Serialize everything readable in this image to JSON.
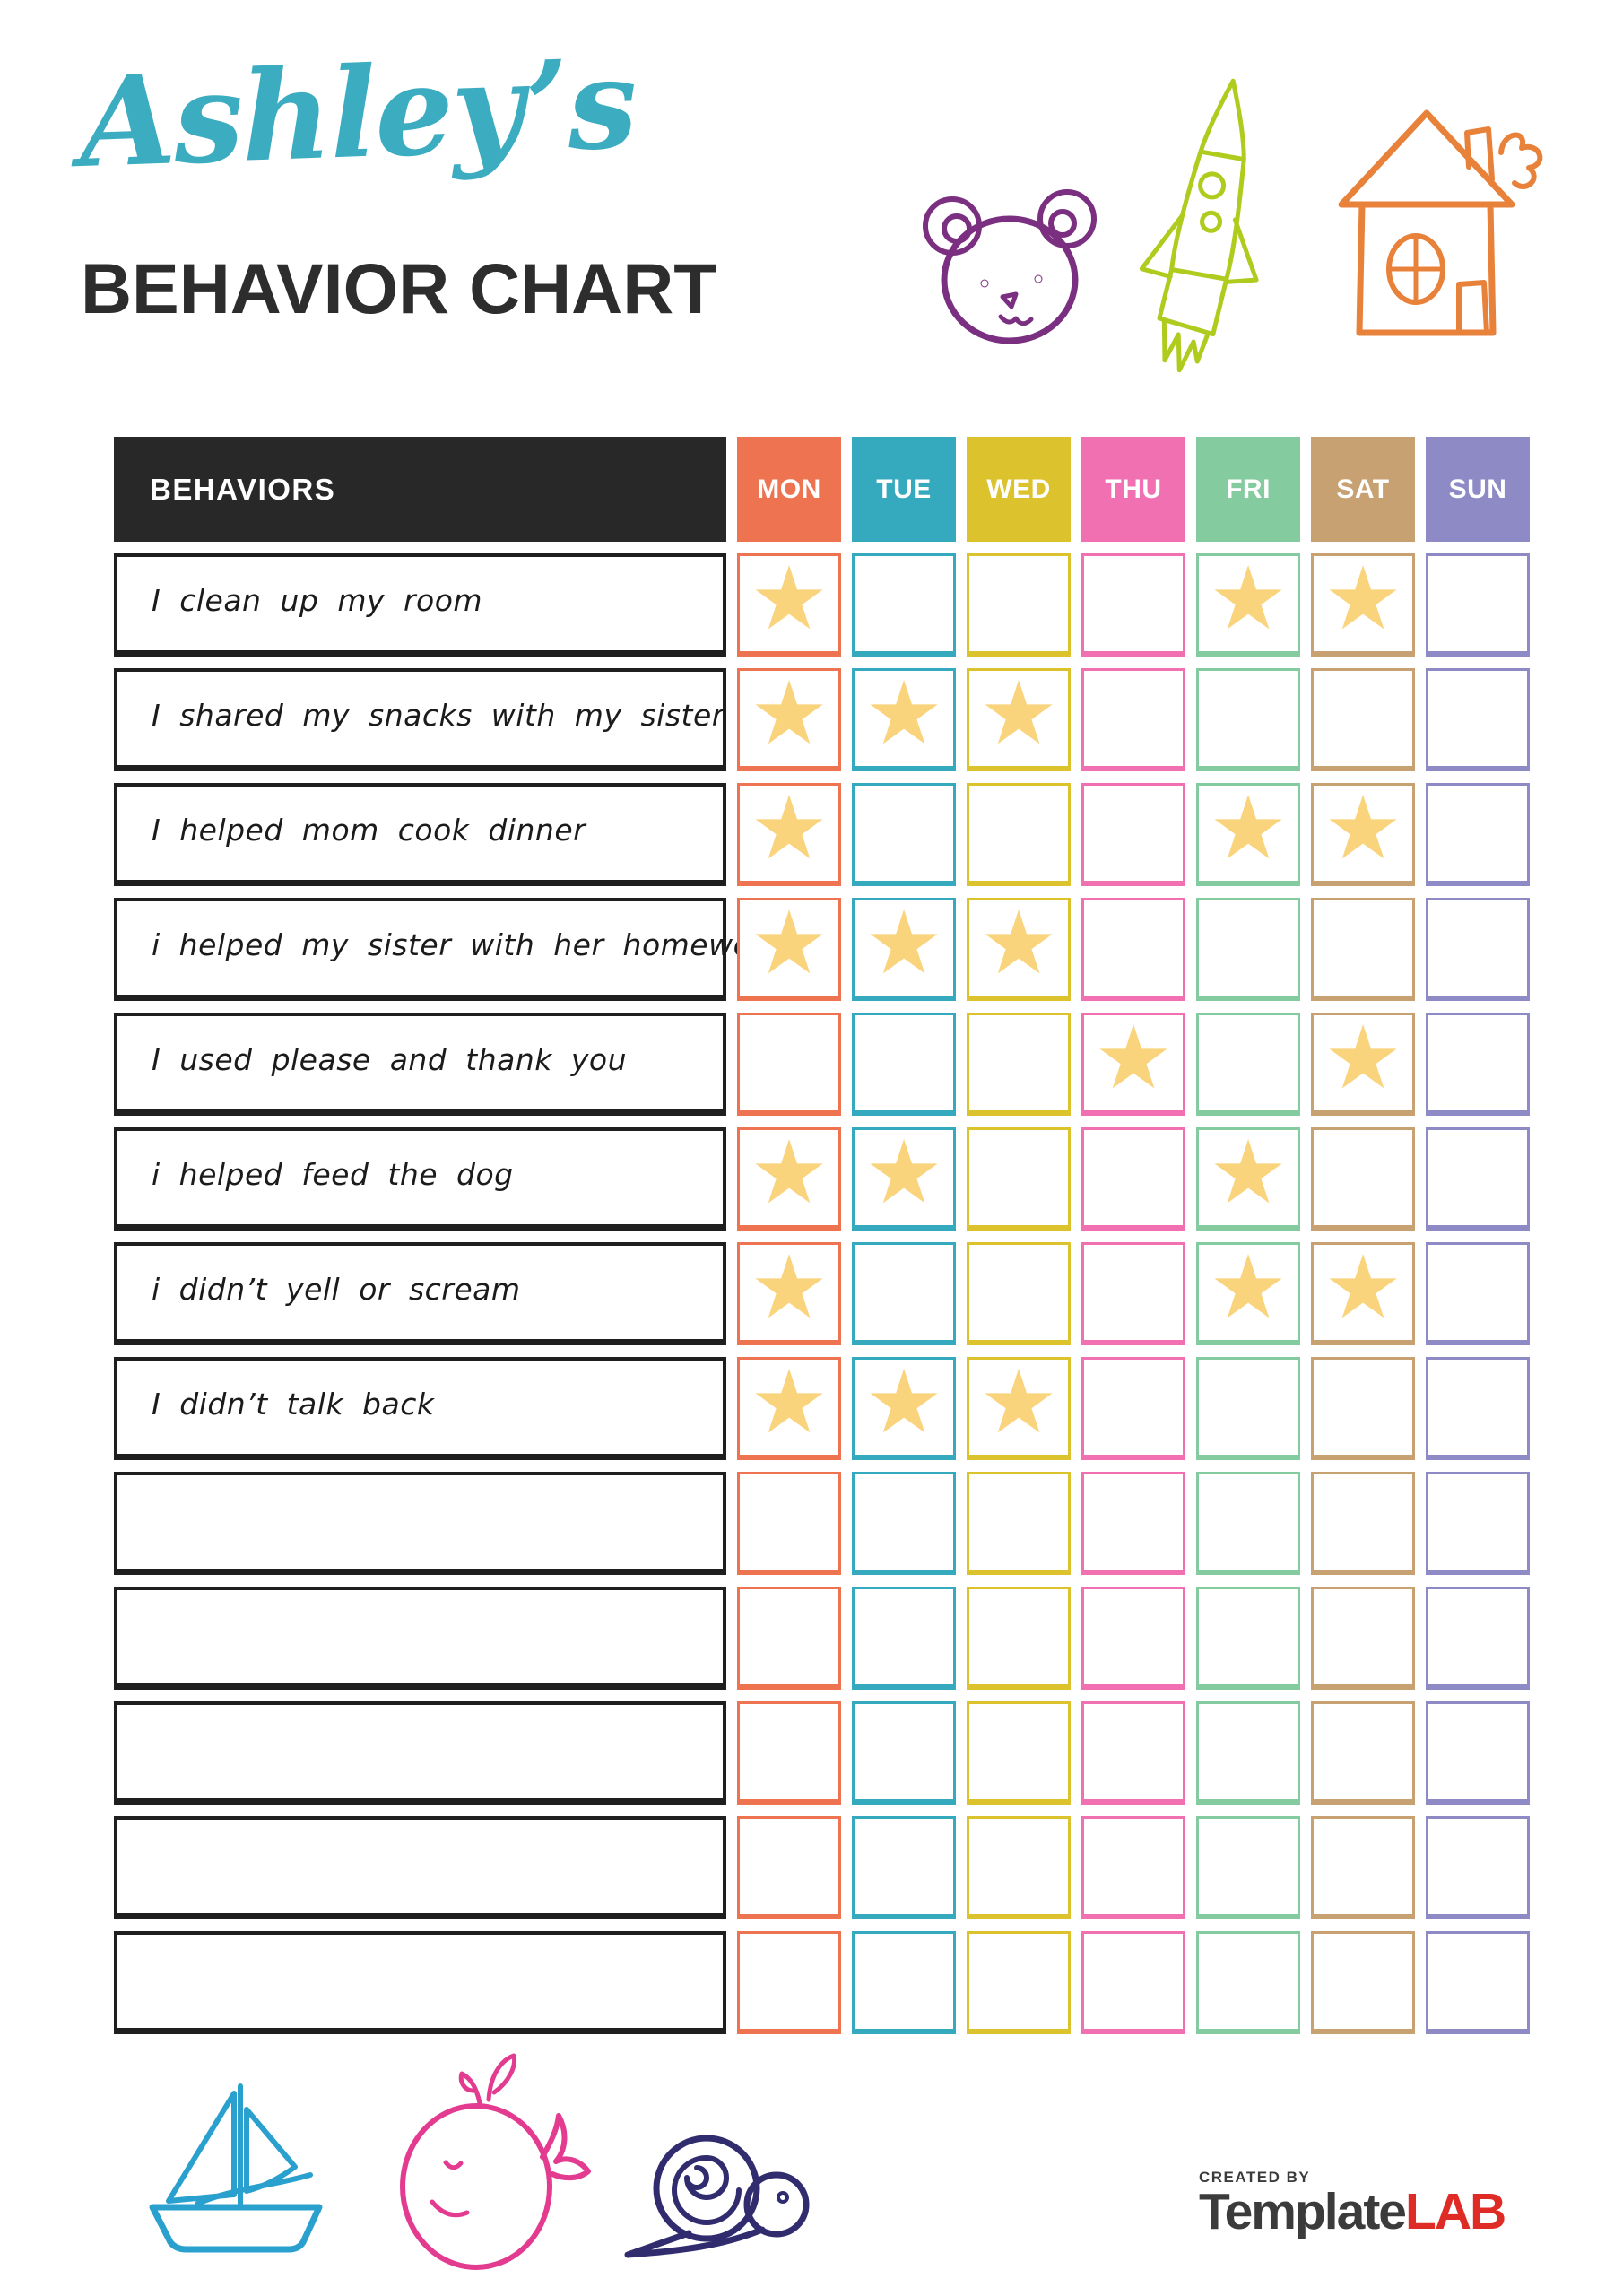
{
  "header": {
    "owner_name": "Ashley’s",
    "title": "BEHAVIOR CHART"
  },
  "colors": {
    "title_script": "#3CADC1",
    "title_main": "#2D2D2D",
    "behaviors_header_bg": "#282828",
    "row_border": "#1F1F1F",
    "star": "#F9D47D",
    "bear": "#7B2F80",
    "rocket": "#AFCB1E",
    "house": "#E8823B",
    "boat": "#2AA0CE",
    "whale": "#E23B90",
    "snail": "#312C6E",
    "brand_dark": "#3B3B3B",
    "brand_red": "#DF2B26"
  },
  "icons": {
    "star_glyph": "★"
  },
  "decorations": {
    "top": [
      "bear-face",
      "rocket",
      "house"
    ],
    "bottom": [
      "sailboat",
      "whale",
      "snail"
    ]
  },
  "table": {
    "behaviors_header": "BEHAVIORS",
    "days": [
      {
        "label": "MON",
        "color": "#EE7351"
      },
      {
        "label": "TUE",
        "color": "#35A9BE"
      },
      {
        "label": "WED",
        "color": "#DCC32D"
      },
      {
        "label": "THU",
        "color": "#F170B2"
      },
      {
        "label": "FRI",
        "color": "#85CBA0"
      },
      {
        "label": "SAT",
        "color": "#C8A172"
      },
      {
        "label": "SUN",
        "color": "#8D8AC5"
      }
    ],
    "rows": [
      {
        "behavior": "I clean up my room",
        "stars": [
          "MON",
          "FRI",
          "SAT"
        ]
      },
      {
        "behavior": "I shared my snacks with my sister",
        "stars": [
          "MON",
          "TUE",
          "WED"
        ]
      },
      {
        "behavior": "I helped mom cook dinner",
        "stars": [
          "MON",
          "FRI",
          "SAT"
        ]
      },
      {
        "behavior": "i helped my sister with her homework",
        "stars": [
          "MON",
          "TUE",
          "WED"
        ]
      },
      {
        "behavior": "I used please and thank you",
        "stars": [
          "THU",
          "SAT"
        ]
      },
      {
        "behavior": "i helped feed the dog",
        "stars": [
          "MON",
          "TUE",
          "FRI"
        ]
      },
      {
        "behavior": "i didn’t yell or scream",
        "stars": [
          "MON",
          "FRI",
          "SAT"
        ]
      },
      {
        "behavior": "I didn’t talk back",
        "stars": [
          "MON",
          "TUE",
          "WED"
        ]
      },
      {
        "behavior": "",
        "stars": []
      },
      {
        "behavior": "",
        "stars": []
      },
      {
        "behavior": "",
        "stars": []
      },
      {
        "behavior": "",
        "stars": []
      },
      {
        "behavior": "",
        "stars": []
      }
    ]
  },
  "footer": {
    "created_by": "CREATED BY",
    "brand_part1": "Template",
    "brand_part2": "LAB"
  }
}
